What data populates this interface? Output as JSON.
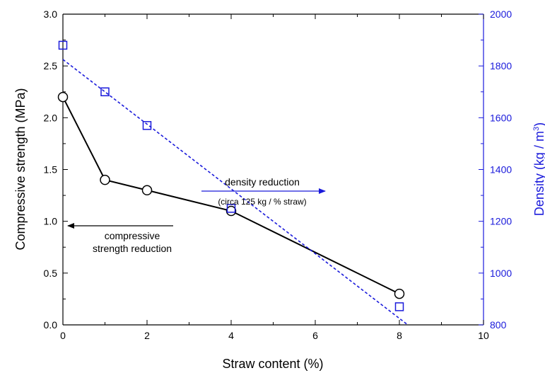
{
  "chart_data": {
    "type": "scatter",
    "xlabel": "Straw content (%)",
    "ylabel_left": "Compressive strength   (MPa)",
    "ylabel_right_main": "Density   (kg / m",
    "ylabel_right_sup": "3",
    "ylabel_right_close": ")",
    "xlim": [
      0,
      10
    ],
    "ylim_left": [
      0,
      3.0
    ],
    "ylim_right": [
      800,
      2000
    ],
    "x_ticks": [
      "0",
      "2",
      "4",
      "6",
      "8",
      "10"
    ],
    "y_left_ticks": [
      "0.0",
      "0.5",
      "1.0",
      "1.5",
      "2.0",
      "2.5",
      "3.0"
    ],
    "y_right_ticks": [
      "800",
      "1000",
      "1200",
      "1400",
      "1600",
      "1800",
      "2000"
    ],
    "colors": {
      "strength": "#000000",
      "density": "#1a1adb"
    },
    "series": [
      {
        "axis": "left",
        "marker": "circle",
        "line": "solid",
        "x": [
          0,
          1,
          2,
          4,
          8
        ],
        "values": [
          2.2,
          1.4,
          1.3,
          1.1,
          0.3
        ]
      },
      {
        "axis": "right",
        "marker": "square",
        "line": "none",
        "x": [
          0,
          1,
          2,
          4,
          8
        ],
        "values": [
          1880,
          1700,
          1570,
          1250,
          870
        ]
      },
      {
        "axis": "right",
        "marker": "none",
        "line": "dotted",
        "x": [
          0,
          8.2
        ],
        "values": [
          1825,
          800
        ]
      }
    ],
    "annotations": {
      "density_line1": "density reduction",
      "density_line2": "(circa 125 kg / % straw)",
      "strength_line1": "compressive",
      "strength_line2": "strength reduction"
    }
  }
}
